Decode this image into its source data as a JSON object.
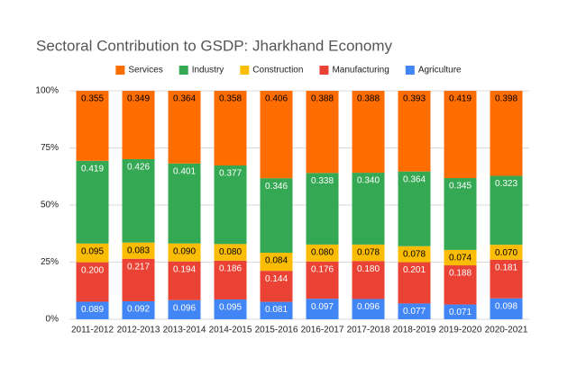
{
  "chart_data": {
    "type": "stacked_percent_bar",
    "title": "Sectoral Contribution to GSDP: Jharkhand Economy",
    "categories": [
      "2011-2012",
      "2012-2013",
      "2013-2014",
      "2014-2015",
      "2015-2016",
      "2016-2017",
      "2017-2018",
      "2018-2019",
      "2019-2020",
      "2020-2021"
    ],
    "series": [
      {
        "name": "Services",
        "color": "#ff6d01",
        "label_color": "#000000",
        "values": [
          0.355,
          0.349,
          0.364,
          0.358,
          0.406,
          0.388,
          0.388,
          0.393,
          0.419,
          0.398
        ],
        "value_labels": [
          "0.355",
          "0.349",
          "0.364",
          "0.358",
          "0.406",
          "0.388",
          "0.388",
          "0.393",
          "0.419",
          "0.398"
        ]
      },
      {
        "name": "Industry",
        "color": "#34a853",
        "label_color": "#ffffff",
        "values": [
          0.419,
          0.426,
          0.401,
          0.377,
          0.346,
          0.338,
          0.34,
          0.364,
          0.345,
          0.323
        ],
        "value_labels": [
          "0.419",
          "0.426",
          "0.401",
          "0.377",
          "0.346",
          "0.338",
          "0.340",
          "0.364",
          "0.345",
          "0.323"
        ]
      },
      {
        "name": "Construction",
        "color": "#fbbc04",
        "label_color": "#000000",
        "values": [
          0.095,
          0.083,
          0.09,
          0.08,
          0.084,
          0.08,
          0.078,
          0.078,
          0.074,
          0.07
        ],
        "value_labels": [
          "0.095",
          "0.083",
          "0.090",
          "0.080",
          "0.084",
          "0.080",
          "0.078",
          "0.078",
          "0.074",
          "0.070"
        ]
      },
      {
        "name": "Manufacturing",
        "color": "#ea4335",
        "label_color": "#ffffff",
        "values": [
          0.2,
          0.217,
          0.194,
          0.186,
          0.144,
          0.176,
          0.18,
          0.201,
          0.188,
          0.181
        ],
        "value_labels": [
          "0.200",
          "0.217",
          "0.194",
          "0.186",
          "0.144",
          "0.176",
          "0.180",
          "0.201",
          "0.188",
          "0.181"
        ]
      },
      {
        "name": "Agriculture",
        "color": "#4285f4",
        "label_color": "#ffffff",
        "values": [
          0.089,
          0.092,
          0.096,
          0.095,
          0.081,
          0.097,
          0.096,
          0.077,
          0.071,
          0.098
        ],
        "value_labels": [
          "0.089",
          "0.092",
          "0.096",
          "0.095",
          "0.081",
          "0.097",
          "0.096",
          "0.077",
          "0.071",
          "0.098"
        ]
      }
    ],
    "ylim": [
      0,
      100
    ],
    "yticks": [
      {
        "value": 0,
        "label": "0%"
      },
      {
        "value": 25,
        "label": "25%"
      },
      {
        "value": 50,
        "label": "50%"
      },
      {
        "value": 75,
        "label": "75%"
      },
      {
        "value": 100,
        "label": "100%"
      }
    ],
    "grid": true,
    "legend": "top"
  }
}
